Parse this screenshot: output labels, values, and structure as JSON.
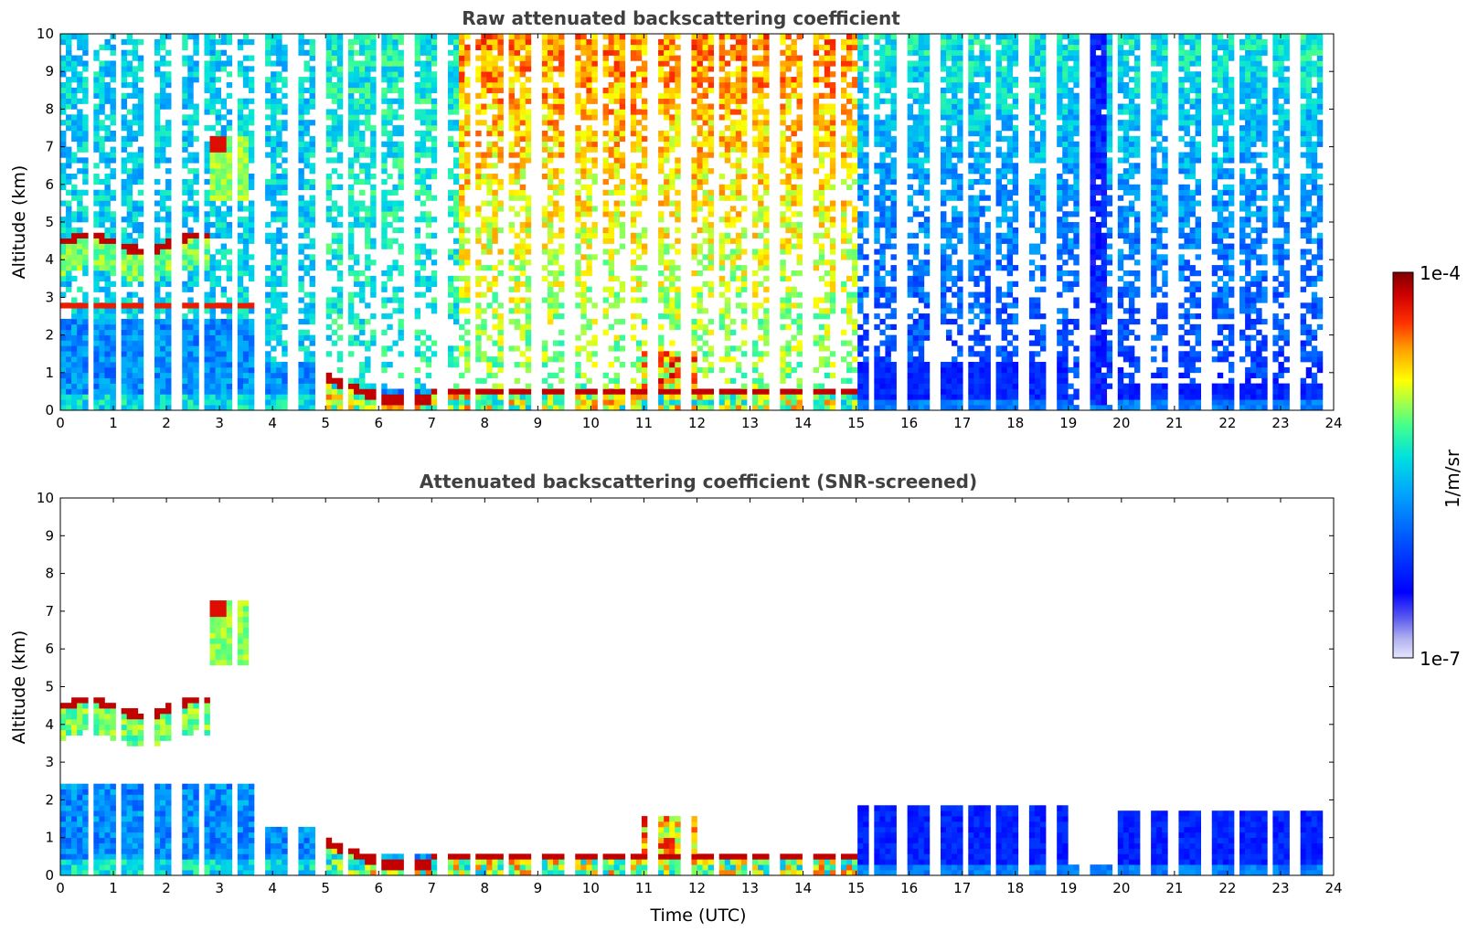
{
  "chart_data": [
    {
      "type": "heatmap",
      "title": "Raw attenuated backscattering coefficient",
      "xlabel": "",
      "ylabel": "Altitude (km)",
      "xlim": [
        0,
        24
      ],
      "ylim": [
        0,
        10
      ],
      "xticks": [
        "0",
        "1",
        "2",
        "3",
        "4",
        "5",
        "6",
        "7",
        "8",
        "9",
        "10",
        "11",
        "12",
        "13",
        "14",
        "15",
        "16",
        "17",
        "18",
        "19",
        "20",
        "21",
        "22",
        "23",
        "24"
      ],
      "yticks": [
        "0",
        "1",
        "2",
        "3",
        "4",
        "5",
        "6",
        "7",
        "8",
        "9",
        "10"
      ],
      "scan_gaps_hours": [
        0.5,
        1.0,
        1.6,
        2.1,
        2.6,
        3.2,
        3.7,
        4.3,
        4.8,
        5.3,
        5.9,
        6.5,
        7.1,
        7.7,
        8.3,
        8.9,
        9.5,
        10.1,
        10.6,
        11.1,
        11.7,
        12.3,
        12.9,
        13.4,
        14.0,
        14.6,
        15.2,
        15.8,
        16.4,
        17.0,
        17.5,
        18.1,
        18.6,
        19.2,
        19.8,
        20.4,
        20.9,
        21.5,
        22.1,
        22.7,
        23.2,
        23.8
      ],
      "layers": [
        {
          "name": "boundary layer",
          "start": 0,
          "end": 24,
          "top_km": 1.3,
          "level": 0.28
        },
        {
          "name": "mid cloud 4.3 km",
          "start": 0,
          "end": 2.8,
          "top_km": 4.5,
          "level": 0.85
        },
        {
          "name": "cloud 7 km",
          "start": 2.8,
          "end": 3.3,
          "top_km": 7.1,
          "level": 0.9
        },
        {
          "name": "low cloud base",
          "start": 5.5,
          "end": 15,
          "top_km": 0.5,
          "level": 0.95
        }
      ]
    },
    {
      "type": "heatmap",
      "title": "Attenuated backscattering coefficient (SNR-screened)",
      "xlabel": "Time (UTC)",
      "ylabel": "Altitude (km)",
      "xlim": [
        0,
        24
      ],
      "ylim": [
        0,
        10
      ],
      "xticks": [
        "0",
        "1",
        "2",
        "3",
        "4",
        "5",
        "6",
        "7",
        "8",
        "9",
        "10",
        "11",
        "12",
        "13",
        "14",
        "15",
        "16",
        "17",
        "18",
        "19",
        "20",
        "21",
        "22",
        "23",
        "24"
      ],
      "yticks": [
        "0",
        "1",
        "2",
        "3",
        "4",
        "5",
        "6",
        "7",
        "8",
        "9",
        "10"
      ],
      "screened": true
    }
  ],
  "colorbar": {
    "label": "1/m/sr",
    "max_label": "1e-4",
    "min_label": "1e-7",
    "colors": [
      "#800000",
      "#cc0000",
      "#ff2a00",
      "#ff8000",
      "#ffd000",
      "#e0ff20",
      "#80ff80",
      "#20e0d0",
      "#00b0ff",
      "#0070ff",
      "#0030ff",
      "#2020e0",
      "#7070ff",
      "#b0b0ff",
      "#dcdcff"
    ]
  }
}
